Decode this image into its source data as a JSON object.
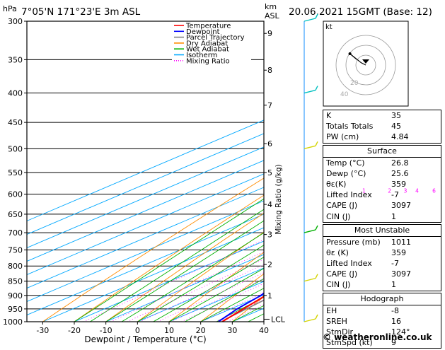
{
  "header": {
    "location": "7°05'N  171°23'E  3m  ASL",
    "datetime": "20.06.2021  15GMT  (Base: 12)",
    "left_unit": "hPa",
    "right_unit_km": "km",
    "right_unit_asl": "ASL"
  },
  "chart_data": {
    "type": "skew-t",
    "xlabel": "Dewpoint / Temperature (°C)",
    "ylabel": "",
    "mixing_label": "Mixing Ratio (g/kg)",
    "xlim": [
      -35,
      40
    ],
    "pressure_range": [
      1000,
      300
    ],
    "x_ticks": [
      -30,
      -20,
      -10,
      0,
      10,
      20,
      30,
      40
    ],
    "pressure_ticks": [
      300,
      350,
      400,
      450,
      500,
      550,
      600,
      650,
      700,
      750,
      800,
      850,
      900,
      950,
      1000
    ],
    "km_ticks": [
      {
        "km": "1",
        "p": 900
      },
      {
        "km": "2",
        "p": 795
      },
      {
        "km": "3",
        "p": 705
      },
      {
        "km": "4",
        "p": 625
      },
      {
        "km": "5",
        "p": 550
      },
      {
        "km": "6",
        "p": 490
      },
      {
        "km": "7",
        "p": 420
      },
      {
        "km": "8",
        "p": 365
      },
      {
        "km": "9",
        "p": 315
      }
    ],
    "lcl_label": "LCL",
    "lcl_pressure": 990,
    "mixing_ratios": [
      "1",
      "2",
      "3",
      "4",
      "6",
      "8",
      "10",
      "15",
      "20",
      "25"
    ],
    "legend": [
      "Temperature",
      "Dewpoint",
      "Parcel Trajectory",
      "Dry Adiabat",
      "Wet Adiabat",
      "Isotherm",
      "Mixing Ratio"
    ],
    "colors": {
      "temperature": "#ff0000",
      "dewpoint": "#0000ff",
      "parcel": "#808080",
      "dry_adiabat": "#ff8c00",
      "wet_adiabat": "#00b000",
      "isotherm": "#00a8ff",
      "mixing_ratio": "#ff00ff"
    },
    "temperature": [
      {
        "p": 1000,
        "t": 26.8
      },
      {
        "p": 950,
        "t": 24.0
      },
      {
        "p": 900,
        "t": 21.0
      },
      {
        "p": 850,
        "t": 18.5
      },
      {
        "p": 800,
        "t": 16.0
      },
      {
        "p": 750,
        "t": 12.5
      },
      {
        "p": 700,
        "t": 9.5
      },
      {
        "p": 650,
        "t": 7.0
      },
      {
        "p": 600,
        "t": 3.0
      },
      {
        "p": 550,
        "t": -2.0
      },
      {
        "p": 500,
        "t": -6.0
      },
      {
        "p": 450,
        "t": -10.5
      },
      {
        "p": 400,
        "t": -17.0
      },
      {
        "p": 370,
        "t": -21.5
      },
      {
        "p": 350,
        "t": -24.5
      },
      {
        "p": 320,
        "t": -29.0
      },
      {
        "p": 300,
        "t": -32.0
      }
    ],
    "dewpoint": [
      {
        "p": 1000,
        "t": 25.6
      },
      {
        "p": 950,
        "t": 22.0
      },
      {
        "p": 900,
        "t": 19.5
      },
      {
        "p": 850,
        "t": 15.0
      },
      {
        "p": 830,
        "t": 10.0
      },
      {
        "p": 800,
        "t": 10.0
      },
      {
        "p": 780,
        "t": 12.0
      },
      {
        "p": 750,
        "t": 7.0
      },
      {
        "p": 700,
        "t": 4.0
      },
      {
        "p": 680,
        "t": 3.0
      },
      {
        "p": 650,
        "t": 2.0
      },
      {
        "p": 620,
        "t": -1.0
      },
      {
        "p": 600,
        "t": -4.0
      },
      {
        "p": 550,
        "t": -10.0
      },
      {
        "p": 540,
        "t": -14.0
      },
      {
        "p": 500,
        "t": -11.0
      },
      {
        "p": 480,
        "t": -17.0
      },
      {
        "p": 465,
        "t": -26.0
      },
      {
        "p": 450,
        "t": -39.0
      },
      {
        "p": 425,
        "t": -49.0
      },
      {
        "p": 400,
        "t": -35.0
      },
      {
        "p": 390,
        "t": -48.0
      },
      {
        "p": 375,
        "t": -39.0
      },
      {
        "p": 360,
        "t": -71.0
      },
      {
        "p": 340,
        "t": -58.0
      },
      {
        "p": 320,
        "t": -48.0
      },
      {
        "p": 310,
        "t": -43.0
      },
      {
        "p": 300,
        "t": -46.0
      }
    ],
    "parcel": [
      {
        "p": 1000,
        "t": 26.8
      },
      {
        "p": 990,
        "t": 26.0
      },
      {
        "p": 900,
        "t": 23.5
      },
      {
        "p": 800,
        "t": 20.0
      },
      {
        "p": 700,
        "t": 15.5
      },
      {
        "p": 600,
        "t": 9.5
      },
      {
        "p": 500,
        "t": 1.5
      },
      {
        "p": 400,
        "t": -9.0
      },
      {
        "p": 300,
        "t": -25.5
      }
    ],
    "wind_barbs": [
      {
        "p": 1000,
        "color": "#d4d400"
      },
      {
        "p": 850,
        "color": "#d4d400"
      },
      {
        "p": 700,
        "color": "#00b000"
      },
      {
        "p": 500,
        "color": "#d4d400"
      },
      {
        "p": 400,
        "color": "#00c0c0"
      },
      {
        "p": 300,
        "color": "#00c0c0"
      }
    ],
    "hodograph": {
      "label": "kt",
      "ring_labels": [
        "40",
        "20"
      ],
      "trace": [
        [
          0,
          0
        ],
        [
          -4,
          2
        ],
        [
          -14,
          10
        ],
        [
          -8,
          5
        ]
      ]
    }
  },
  "indices": {
    "top": [
      {
        "label": "K",
        "value": "35"
      },
      {
        "label": "Totals Totals",
        "value": "45"
      },
      {
        "label": "PW (cm)",
        "value": "4.84"
      }
    ],
    "surface": {
      "title": "Surface",
      "rows": [
        {
          "label": "Temp (°C)",
          "value": "26.8"
        },
        {
          "label": "Dewp (°C)",
          "value": "25.6"
        },
        {
          "label": "θε(K)",
          "value": "359"
        },
        {
          "label": "Lifted Index",
          "value": "-7"
        },
        {
          "label": "CAPE (J)",
          "value": "3097"
        },
        {
          "label": "CIN (J)",
          "value": "1"
        }
      ]
    },
    "most_unstable": {
      "title": "Most Unstable",
      "rows": [
        {
          "label": "Pressure (mb)",
          "value": "1011"
        },
        {
          "label": "θε (K)",
          "value": "359"
        },
        {
          "label": "Lifted Index",
          "value": "-7"
        },
        {
          "label": "CAPE (J)",
          "value": "3097"
        },
        {
          "label": "CIN (J)",
          "value": "1"
        }
      ]
    },
    "hodograph_block": {
      "title": "Hodograph",
      "rows": [
        {
          "label": "EH",
          "value": "-8"
        },
        {
          "label": "SREH",
          "value": "16"
        },
        {
          "label": "StmDir",
          "value": "124°"
        },
        {
          "label": "StmSpd (kt)",
          "value": "9"
        }
      ]
    }
  },
  "credit": "© weatheronline.co.uk"
}
